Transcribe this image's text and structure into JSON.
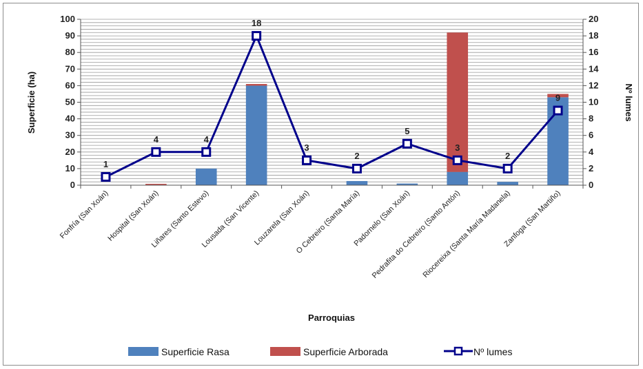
{
  "chart_data": {
    "type": "bar",
    "stacked": true,
    "xlabel": "Parroquias",
    "ylabel": "Superficie (ha)",
    "y2label": "Nº lumes",
    "ylim": [
      0,
      100
    ],
    "y2lim": [
      0,
      20
    ],
    "yticks": [
      0,
      10,
      20,
      30,
      40,
      50,
      60,
      70,
      80,
      90,
      100
    ],
    "y2ticks": [
      0,
      2,
      4,
      6,
      8,
      10,
      12,
      14,
      16,
      18,
      20
    ],
    "grid": true,
    "legend_position": "bottom",
    "categories": [
      "Fonfría (San Xoán)",
      "Hospital (San Xoán)",
      "Liñares (Santo Estevo)",
      "Lousada (San Vicente)",
      "Louzarela (San Xoán)",
      "O Cebreiro (Santa María)",
      "Padornelo (San Xoán)",
      "Pedrafita do Cebreiro (Santo Antón)",
      "Riocereixa (Santa María Madanela)",
      "Zanfoga (San Martiño)"
    ],
    "series": [
      {
        "name": "Superficie Rasa",
        "type": "bar",
        "axis": "left",
        "color": "#4f81bd",
        "values": [
          0.2,
          0,
          10,
          60,
          0,
          2.5,
          1,
          8,
          2,
          53
        ]
      },
      {
        "name": "Superficie Arborada",
        "type": "bar",
        "axis": "left",
        "color": "#c0504d",
        "values": [
          0,
          0.8,
          0,
          1,
          0,
          0,
          0,
          84,
          0,
          2
        ]
      },
      {
        "name": "Nº lumes",
        "type": "line",
        "axis": "right",
        "color": "#00008b",
        "values": [
          1,
          4,
          4,
          18,
          3,
          2,
          5,
          3,
          2,
          9
        ],
        "data_labels": [
          "1",
          "4",
          "4",
          "18",
          "3",
          "2",
          "5",
          "3",
          "2",
          "9"
        ]
      }
    ]
  }
}
